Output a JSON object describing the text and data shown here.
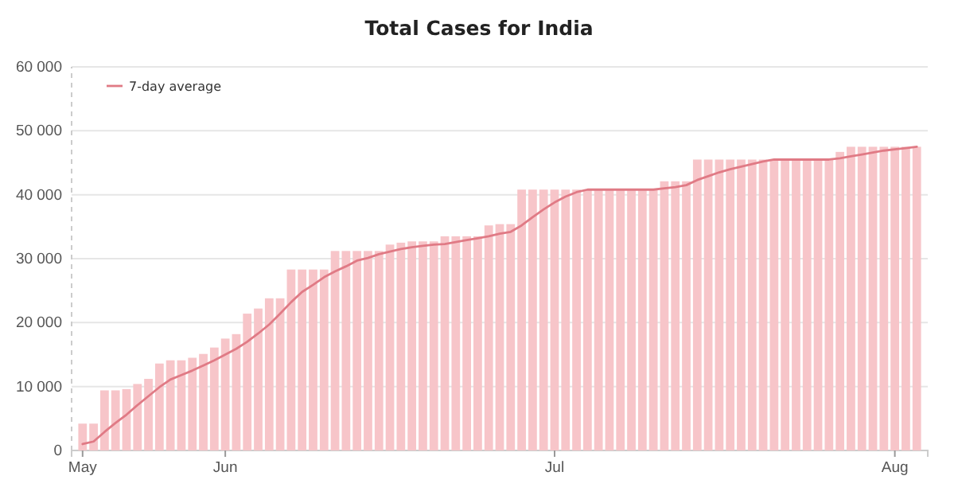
{
  "chart_data": {
    "type": "bar",
    "title": "Total Cases for India",
    "x": [
      "--05-19",
      "--05-20",
      "--05-21",
      "--05-22",
      "--05-23",
      "--05-24",
      "--05-25",
      "--05-26",
      "--05-27",
      "--05-28",
      "--05-29",
      "--05-30",
      "--05-31",
      "--06-01",
      "--06-02",
      "--06-03",
      "--06-04",
      "--06-05",
      "--06-06",
      "--06-07",
      "--06-08",
      "--06-09",
      "--06-10",
      "--06-11",
      "--06-12",
      "--06-13",
      "--06-14",
      "--06-15",
      "--06-16",
      "--06-17",
      "--06-18",
      "--06-19",
      "--06-20",
      "--06-21",
      "--06-22",
      "--06-23",
      "--06-24",
      "--06-25",
      "--06-26",
      "--06-27",
      "--06-28",
      "--06-29",
      "--06-30",
      "--07-01",
      "--07-02",
      "--07-03",
      "--07-04",
      "--07-05",
      "--07-06",
      "--07-07",
      "--07-08",
      "--07-09",
      "--07-10",
      "--07-11",
      "--07-12",
      "--07-13",
      "--07-14",
      "--07-15",
      "--07-16",
      "--07-17",
      "--07-18",
      "--07-19",
      "--07-20",
      "--07-21",
      "--07-22",
      "--07-23",
      "--07-24",
      "--07-25",
      "--07-26",
      "--07-27",
      "--07-28",
      "--07-29",
      "--07-30",
      "--07-31",
      "--08-01",
      "--08-02",
      "--08-03"
    ],
    "series": [
      {
        "color": "#f7c5c9",
        "values": [
          4200,
          4200,
          9400,
          9400,
          9600,
          10400,
          11200,
          13600,
          14100,
          14100,
          14500,
          15100,
          16100,
          17500,
          18200,
          21400,
          22200,
          23800,
          23800,
          28300,
          28300,
          28300,
          28300,
          31200,
          31200,
          31200,
          31200,
          31200,
          32200,
          32500,
          32700,
          32700,
          32700,
          33500,
          33500,
          33500,
          33500,
          35200,
          35400,
          35400,
          40800,
          40800,
          40800,
          40800,
          40800,
          40800,
          40800,
          40800,
          40800,
          40800,
          40800,
          40800,
          40800,
          42100,
          42100,
          42100,
          45500,
          45500,
          45500,
          45500,
          45500,
          45500,
          45500,
          45500,
          45500,
          45500,
          45500,
          45500,
          45500,
          46700,
          47500,
          47500,
          47500,
          47500,
          47500,
          47500,
          47500
        ]
      },
      {
        "type": "line",
        "name": "7-day average",
        "color": "#e07a85",
        "values": [
          1000,
          1400,
          2900,
          4300,
          5600,
          7100,
          8500,
          9900,
          11100,
          11800,
          12500,
          13300,
          14100,
          15000,
          15900,
          17000,
          18300,
          19700,
          21400,
          23200,
          24800,
          25900,
          27100,
          28000,
          28800,
          29700,
          30100,
          30700,
          31100,
          31500,
          31800,
          32000,
          32200,
          32300,
          32600,
          32900,
          33200,
          33500,
          33900,
          34200,
          35200,
          36500,
          37700,
          38800,
          39700,
          40400,
          40800,
          40800,
          40800,
          40800,
          40800,
          40800,
          40800,
          41000,
          41200,
          41500,
          42300,
          42900,
          43500,
          44000,
          44400,
          44800,
          45200,
          45500,
          45500,
          45500,
          45500,
          45500,
          45500,
          45700,
          46000,
          46300,
          46600,
          46900,
          47100,
          47300,
          47500
        ]
      }
    ],
    "xlim": [
      "--05-18",
      "--08-04"
    ],
    "xticks": [
      {
        "value": "--05-19",
        "label": "May"
      },
      {
        "value": "--06-01",
        "label": "Jun"
      },
      {
        "value": "--07-01",
        "label": "Jul"
      },
      {
        "value": "--08-01",
        "label": "Aug"
      }
    ],
    "ylim": [
      0,
      60000
    ],
    "yticks": [
      0,
      {
        "value": 10000,
        "label": "10 000"
      },
      {
        "value": 20000,
        "label": "20 000"
      },
      {
        "value": 30000,
        "label": "30 000"
      },
      {
        "value": 40000,
        "label": "40 000"
      },
      {
        "value": 50000,
        "label": "50 000"
      },
      {
        "value": 60000,
        "label": "60 000"
      }
    ],
    "grid": "y",
    "legend": "top left"
  }
}
